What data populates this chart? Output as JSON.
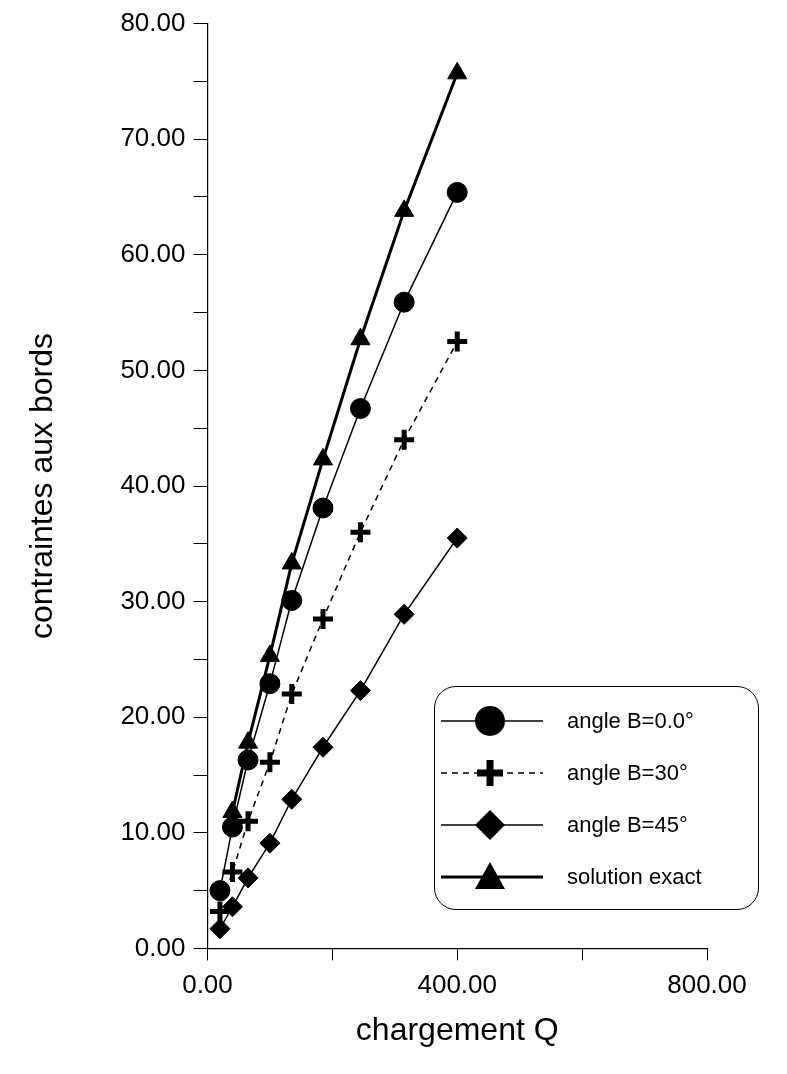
{
  "chart_data": {
    "type": "line",
    "xlabel": "chargement Q",
    "ylabel": "contraintes aux bords",
    "x": [
      20,
      40,
      65,
      100,
      135,
      185,
      245,
      315,
      400
    ],
    "series": [
      {
        "name": "angle B=0.0°",
        "color": "#000000",
        "marker": "circle",
        "line_style": "solid",
        "values": [
          5.0,
          10.5,
          16.3,
          22.9,
          30.1,
          38.1,
          46.7,
          55.9,
          65.4
        ]
      },
      {
        "name": "angle B=30°",
        "color": "#000000",
        "marker": "cross",
        "line_style": "dashed",
        "values": [
          3.2,
          6.6,
          11.0,
          16.1,
          22.0,
          28.5,
          36.0,
          44.0,
          52.5
        ]
      },
      {
        "name": "angle B=45°",
        "color": "#000000",
        "marker": "diamond",
        "line_style": "solid",
        "values": [
          1.7,
          3.6,
          6.1,
          9.1,
          12.9,
          17.4,
          22.3,
          28.9,
          35.5
        ]
      },
      {
        "name": "solution exact",
        "color": "#000000",
        "marker": "triangle",
        "line_style": "solid",
        "values": [
          null,
          11.8,
          17.8,
          25.3,
          33.3,
          42.3,
          52.7,
          63.8,
          75.7
        ]
      }
    ],
    "xlim": [
      0,
      800
    ],
    "xticks": [
      {
        "value": 0,
        "label": "0.00"
      },
      {
        "value": 200,
        "label": null
      },
      {
        "value": 400,
        "label": "400.00"
      },
      {
        "value": 600,
        "label": null
      },
      {
        "value": 800,
        "label": "800.00"
      }
    ],
    "ylim": [
      0,
      80
    ],
    "yticks": [
      {
        "value": 0,
        "label": "0.00"
      },
      {
        "value": 5,
        "label": null
      },
      {
        "value": 10,
        "label": "10.00"
      },
      {
        "value": 15,
        "label": null
      },
      {
        "value": 20,
        "label": "20.00"
      },
      {
        "value": 25,
        "label": null
      },
      {
        "value": 30,
        "label": "30.00"
      },
      {
        "value": 35,
        "label": null
      },
      {
        "value": 40,
        "label": "40.00"
      },
      {
        "value": 45,
        "label": null
      },
      {
        "value": 50,
        "label": "50.00"
      },
      {
        "value": 55,
        "label": null
      },
      {
        "value": 60,
        "label": "60.00"
      },
      {
        "value": 65,
        "label": null
      },
      {
        "value": 70,
        "label": "70.00"
      },
      {
        "value": 75,
        "label": null
      },
      {
        "value": 80,
        "label": "80.00"
      }
    ],
    "grid": false,
    "legend": "bottom right"
  }
}
